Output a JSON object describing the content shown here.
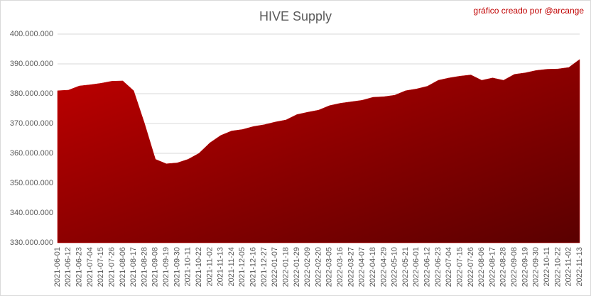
{
  "chart_data": {
    "type": "area",
    "title": "HIVE Supply",
    "annotation": "gráfico creado por @arcange",
    "categories": [
      "2021-06-01",
      "2021-06-12",
      "2021-06-23",
      "2021-07-04",
      "2021-07-15",
      "2021-07-26",
      "2021-08-06",
      "2021-08-17",
      "2021-08-28",
      "2021-09-08",
      "2021-09-19",
      "2021-09-30",
      "2021-10-11",
      "2021-10-22",
      "2021-11-02",
      "2021-11-13",
      "2021-11-24",
      "2021-12-05",
      "2021-12-16",
      "2021-12-27",
      "2022-01-07",
      "2022-01-18",
      "2022-01-29",
      "2022-02-09",
      "2022-02-20",
      "2022-03-05",
      "2022-03-16",
      "2022-03-27",
      "2022-04-07",
      "2022-04-18",
      "2022-04-29",
      "2022-05-10",
      "2022-05-21",
      "2022-06-01",
      "2022-06-12",
      "2022-06-23",
      "2022-07-04",
      "2022-07-15",
      "2022-07-26",
      "2022-08-06",
      "2022-08-17",
      "2022-08-28",
      "2022-09-08",
      "2022-09-19",
      "2022-09-30",
      "2022-10-11",
      "2022-10-22",
      "2022-11-02",
      "2022-11-13"
    ],
    "values": [
      381000000,
      381200000,
      382600000,
      383000000,
      383500000,
      384200000,
      384300000,
      381000000,
      370000000,
      358000000,
      356500000,
      356800000,
      358000000,
      360000000,
      363500000,
      366000000,
      367500000,
      368000000,
      369000000,
      369600000,
      370500000,
      371200000,
      373000000,
      373800000,
      374500000,
      376000000,
      376800000,
      377300000,
      377800000,
      378800000,
      379000000,
      379500000,
      381000000,
      381600000,
      382500000,
      384500000,
      385300000,
      385900000,
      386300000,
      384500000,
      385300000,
      384500000,
      386500000,
      387000000,
      387800000,
      388200000,
      388300000,
      388800000,
      391500000
    ],
    "color": "#c00000",
    "ylim": [
      330000000,
      400000000
    ],
    "yticks": [
      {
        "value": 330000000,
        "label": "330.000.000"
      },
      {
        "value": 340000000,
        "label": "340.000.000"
      },
      {
        "value": 350000000,
        "label": "350.000.000"
      },
      {
        "value": 360000000,
        "label": "360.000.000"
      },
      {
        "value": 370000000,
        "label": "370.000.000"
      },
      {
        "value": 380000000,
        "label": "380.000.000"
      },
      {
        "value": 390000000,
        "label": "390.000.000"
      },
      {
        "value": 400000000,
        "label": "400.000.000"
      }
    ],
    "grid": true
  }
}
